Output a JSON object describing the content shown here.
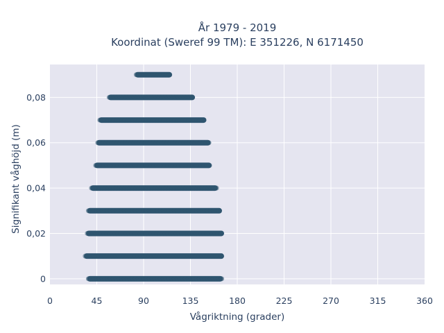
{
  "chart_data": {
    "type": "scatter",
    "title_line1": "År 1979 - 2019",
    "title_line2": "Koordinat (Sweref 99 TM): E 351226, N 6171450",
    "xlabel": "Vågriktning (grader)",
    "ylabel": "Signifikant våghöjd (m)",
    "xlim": [
      0,
      360
    ],
    "ylim": [
      -0.0025,
      0.0945
    ],
    "x_ticks": [
      0,
      45,
      90,
      135,
      180,
      225,
      270,
      315,
      360
    ],
    "x_tick_labels": [
      "0",
      "45",
      "90",
      "135",
      "180",
      "225",
      "270",
      "315",
      "360"
    ],
    "y_ticks": [
      0,
      0.02,
      0.04,
      0.06,
      0.08
    ],
    "y_tick_labels": [
      "0",
      "0,02",
      "0,04",
      "0,06",
      "0,08"
    ],
    "grid": true,
    "colors": {
      "background": "#e5e5f0",
      "grid": "#ffffff",
      "marker": "#2f5570"
    },
    "series": [
      {
        "points": [
          {
            "y": 0.0,
            "x_min": 37,
            "x_max": 165
          },
          {
            "y": 0.01,
            "x_min": 34,
            "x_max": 166
          },
          {
            "y": 0.02,
            "x_min": 36,
            "x_max": 166
          },
          {
            "y": 0.03,
            "x_min": 37,
            "x_max": 164
          },
          {
            "y": 0.04,
            "x_min": 40,
            "x_max": 160
          },
          {
            "y": 0.05,
            "x_min": 44,
            "x_max": 154
          },
          {
            "y": 0.06,
            "x_min": 46,
            "x_max": 153
          },
          {
            "y": 0.07,
            "x_min": 48,
            "x_max": 149
          },
          {
            "y": 0.08,
            "x_min": 57,
            "x_max": 138
          },
          {
            "y": 0.09,
            "x_min": 83,
            "x_max": 116
          }
        ]
      }
    ]
  }
}
